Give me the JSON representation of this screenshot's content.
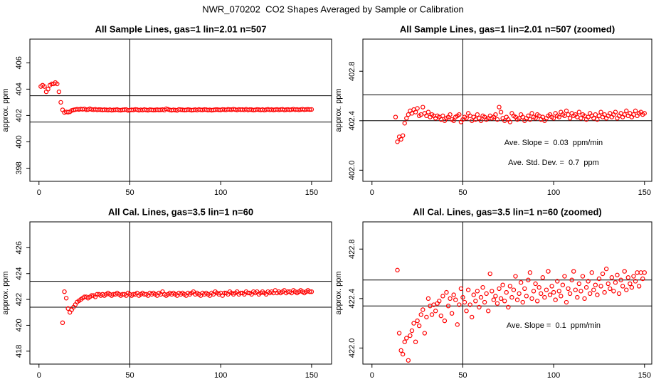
{
  "title": "NWR_070202  CO2 Shapes Averaged by Sample or Calibration",
  "chart_data": [
    {
      "type": "scatter",
      "title": "All Sample Lines, gas=1 lin=2.01 n=507",
      "ylabel": "approx. ppm",
      "color": "#ff0000",
      "xlim": [
        -5,
        161
      ],
      "ylim": [
        397,
        407.8
      ],
      "xticks": [
        0,
        50,
        100,
        150
      ],
      "yticks": [
        398,
        400,
        402,
        404,
        406
      ],
      "hlines": [
        403.5,
        401.5
      ],
      "vlines": [
        50
      ],
      "x": [
        1,
        2,
        3,
        4,
        5,
        6,
        7,
        8,
        9,
        10,
        11,
        12,
        13,
        14,
        15,
        16,
        17,
        18,
        19,
        20,
        21,
        22,
        23,
        24,
        25,
        26,
        27,
        28,
        29,
        30,
        31,
        32,
        33,
        34,
        35,
        36,
        37,
        38,
        39,
        40,
        41,
        42,
        43,
        44,
        45,
        46,
        47,
        48,
        49,
        50,
        51,
        52,
        53,
        54,
        55,
        56,
        57,
        58,
        59,
        60,
        61,
        62,
        63,
        64,
        65,
        66,
        67,
        68,
        69,
        70,
        71,
        72,
        73,
        74,
        75,
        76,
        77,
        78,
        79,
        80,
        81,
        82,
        83,
        84,
        85,
        86,
        87,
        88,
        89,
        90,
        91,
        92,
        93,
        94,
        95,
        96,
        97,
        98,
        99,
        100,
        101,
        102,
        103,
        104,
        105,
        106,
        107,
        108,
        109,
        110,
        111,
        112,
        113,
        114,
        115,
        116,
        117,
        118,
        119,
        120,
        121,
        122,
        123,
        124,
        125,
        126,
        127,
        128,
        129,
        130,
        131,
        132,
        133,
        134,
        135,
        136,
        137,
        138,
        139,
        140,
        141,
        142,
        143,
        144,
        145,
        146,
        147,
        148,
        149,
        150
      ],
      "values": [
        404.2,
        404.3,
        404.2,
        403.8,
        404.0,
        404.3,
        404.4,
        404.4,
        404.5,
        404.4,
        403.8,
        403.0,
        402.43,
        402.23,
        402.27,
        402.25,
        402.28,
        402.38,
        402.42,
        402.45,
        402.48,
        402.46,
        402.49,
        402.47,
        402.5,
        402.44,
        402.45,
        402.51,
        402.46,
        402.44,
        402.47,
        402.43,
        402.45,
        402.44,
        402.42,
        402.44,
        402.43,
        402.41,
        402.44,
        402.4,
        402.42,
        402.43,
        402.45,
        402.41,
        402.4,
        402.43,
        402.44,
        402.45,
        402.39,
        402.41,
        402.43,
        402.42,
        402.46,
        402.44,
        402.4,
        402.43,
        402.41,
        402.45,
        402.42,
        402.4,
        402.44,
        402.43,
        402.41,
        402.42,
        402.44,
        402.42,
        402.43,
        402.45,
        402.41,
        402.51,
        402.47,
        402.42,
        402.4,
        402.43,
        402.41,
        402.39,
        402.46,
        402.44,
        402.43,
        402.41,
        402.42,
        402.45,
        402.43,
        402.4,
        402.42,
        402.44,
        402.41,
        402.46,
        402.43,
        402.42,
        402.45,
        402.44,
        402.41,
        402.43,
        402.4,
        402.42,
        402.44,
        402.45,
        402.43,
        402.42,
        402.46,
        402.44,
        402.43,
        402.47,
        402.45,
        402.44,
        402.48,
        402.45,
        402.42,
        402.46,
        402.44,
        402.45,
        402.43,
        402.47,
        402.42,
        402.45,
        402.44,
        402.41,
        402.43,
        402.46,
        402.44,
        402.42,
        402.45,
        402.41,
        402.44,
        402.47,
        402.43,
        402.45,
        402.42,
        402.44,
        402.46,
        402.43,
        402.45,
        402.47,
        402.42,
        402.44,
        402.46,
        402.43,
        402.45,
        402.48,
        402.44,
        402.46,
        402.43,
        402.45,
        402.48,
        402.44,
        402.46,
        402.47,
        402.45,
        402.46
      ]
    },
    {
      "type": "scatter",
      "title": "All Sample Lines, gas=1 lin=2.01 n=507 (zoomed)",
      "ylabel": "approx. ppm",
      "color": "#ff0000",
      "xlim": [
        -5,
        154
      ],
      "ylim": [
        401.91,
        403.06
      ],
      "xticks": [
        0,
        50,
        100,
        150
      ],
      "yticks": [
        {
          "value": 402,
          "label": "402.0"
        },
        402.4,
        402.8
      ],
      "hlines": [
        402.61,
        402.4
      ],
      "vlines": [
        50
      ],
      "annotations": [
        "Ave. Slope =  0.03  ppm/min",
        "Ave. Std. Dev. =  0.7  ppm"
      ],
      "x": [
        13,
        14,
        15,
        16,
        17,
        18,
        19,
        20,
        21,
        22,
        23,
        24,
        25,
        26,
        27,
        28,
        29,
        30,
        31,
        32,
        33,
        34,
        35,
        36,
        37,
        38,
        39,
        40,
        41,
        42,
        43,
        44,
        45,
        46,
        47,
        48,
        49,
        50,
        51,
        52,
        53,
        54,
        55,
        56,
        57,
        58,
        59,
        60,
        61,
        62,
        63,
        64,
        65,
        66,
        67,
        68,
        69,
        70,
        71,
        72,
        73,
        74,
        75,
        76,
        77,
        78,
        79,
        80,
        81,
        82,
        83,
        84,
        85,
        86,
        87,
        88,
        89,
        90,
        91,
        92,
        93,
        94,
        95,
        96,
        97,
        98,
        99,
        100,
        101,
        102,
        103,
        104,
        105,
        106,
        107,
        108,
        109,
        110,
        111,
        112,
        113,
        114,
        115,
        116,
        117,
        118,
        119,
        120,
        121,
        122,
        123,
        124,
        125,
        126,
        127,
        128,
        129,
        130,
        131,
        132,
        133,
        134,
        135,
        136,
        137,
        138,
        139,
        140,
        141,
        142,
        143,
        144,
        145,
        146,
        147,
        148,
        149,
        150
      ],
      "values": [
        402.43,
        402.23,
        402.27,
        402.25,
        402.28,
        402.38,
        402.42,
        402.45,
        402.48,
        402.46,
        402.49,
        402.47,
        402.5,
        402.44,
        402.45,
        402.51,
        402.46,
        402.44,
        402.47,
        402.43,
        402.45,
        402.44,
        402.42,
        402.44,
        402.43,
        402.41,
        402.44,
        402.4,
        402.42,
        402.43,
        402.45,
        402.41,
        402.4,
        402.43,
        402.44,
        402.45,
        402.39,
        402.41,
        402.43,
        402.42,
        402.46,
        402.44,
        402.4,
        402.43,
        402.41,
        402.45,
        402.42,
        402.4,
        402.44,
        402.43,
        402.41,
        402.42,
        402.44,
        402.42,
        402.43,
        402.45,
        402.41,
        402.51,
        402.47,
        402.42,
        402.4,
        402.43,
        402.41,
        402.39,
        402.46,
        402.44,
        402.43,
        402.41,
        402.42,
        402.45,
        402.43,
        402.4,
        402.42,
        402.44,
        402.41,
        402.46,
        402.43,
        402.42,
        402.45,
        402.44,
        402.41,
        402.43,
        402.4,
        402.42,
        402.44,
        402.45,
        402.43,
        402.42,
        402.46,
        402.44,
        402.43,
        402.47,
        402.45,
        402.44,
        402.48,
        402.45,
        402.42,
        402.46,
        402.44,
        402.45,
        402.43,
        402.47,
        402.42,
        402.45,
        402.44,
        402.41,
        402.43,
        402.46,
        402.44,
        402.42,
        402.45,
        402.41,
        402.44,
        402.47,
        402.43,
        402.45,
        402.42,
        402.44,
        402.46,
        402.43,
        402.45,
        402.47,
        402.42,
        402.44,
        402.46,
        402.43,
        402.45,
        402.48,
        402.44,
        402.46,
        402.43,
        402.45,
        402.48,
        402.44,
        402.46,
        402.47,
        402.45,
        402.46
      ]
    },
    {
      "type": "scatter",
      "title": "All Cal. Lines, gas=3.5 lin=1 n=60",
      "ylabel": "approx. ppm",
      "color": "#ff0000",
      "xlim": [
        -5,
        161
      ],
      "ylim": [
        417,
        428
      ],
      "xticks": [
        0,
        50,
        100,
        150
      ],
      "yticks": [
        418,
        420,
        422,
        424,
        426
      ],
      "hlines": [
        423.4,
        421.4
      ],
      "vlines": [
        50
      ],
      "x": [
        13,
        14,
        15,
        16,
        17,
        18,
        19,
        20,
        21,
        22,
        23,
        24,
        25,
        26,
        27,
        28,
        29,
        30,
        31,
        32,
        33,
        34,
        35,
        36,
        37,
        38,
        39,
        40,
        41,
        42,
        43,
        44,
        45,
        46,
        47,
        48,
        49,
        50,
        51,
        52,
        53,
        54,
        55,
        56,
        57,
        58,
        59,
        60,
        61,
        62,
        63,
        64,
        65,
        66,
        67,
        68,
        69,
        70,
        71,
        72,
        73,
        74,
        75,
        76,
        77,
        78,
        79,
        80,
        81,
        82,
        83,
        84,
        85,
        86,
        87,
        88,
        89,
        90,
        91,
        92,
        93,
        94,
        95,
        96,
        97,
        98,
        99,
        100,
        101,
        102,
        103,
        104,
        105,
        106,
        107,
        108,
        109,
        110,
        111,
        112,
        113,
        114,
        115,
        116,
        117,
        118,
        119,
        120,
        121,
        122,
        123,
        124,
        125,
        126,
        127,
        128,
        129,
        130,
        131,
        132,
        133,
        134,
        135,
        136,
        137,
        138,
        139,
        140,
        141,
        142,
        143,
        144,
        145,
        146,
        147,
        148,
        149,
        150
      ],
      "values": [
        420.2,
        422.6,
        422.1,
        421.3,
        421.0,
        421.2,
        421.4,
        421.6,
        421.8,
        421.9,
        422.0,
        422.1,
        422.2,
        422.2,
        422.1,
        422.2,
        422.3,
        422.3,
        422.2,
        422.4,
        422.4,
        422.3,
        422.4,
        422.3,
        422.4,
        422.5,
        422.4,
        422.3,
        422.4,
        422.4,
        422.5,
        422.4,
        422.3,
        422.4,
        422.4,
        422.3,
        422.5,
        422.4,
        422.3,
        422.4,
        422.4,
        422.5,
        422.3,
        422.4,
        422.5,
        422.4,
        422.4,
        422.3,
        422.5,
        422.4,
        422.5,
        422.4,
        422.3,
        422.5,
        422.4,
        422.6,
        422.4,
        422.3,
        422.4,
        422.5,
        422.4,
        422.5,
        422.4,
        422.3,
        422.5,
        422.4,
        422.5,
        422.4,
        422.3,
        422.5,
        422.4,
        422.5,
        422.6,
        422.4,
        422.5,
        422.4,
        422.3,
        422.5,
        422.4,
        422.5,
        422.4,
        422.3,
        422.5,
        422.4,
        422.6,
        422.5,
        422.4,
        422.5,
        422.3,
        422.5,
        422.5,
        422.4,
        422.6,
        422.5,
        422.4,
        422.5,
        422.6,
        422.4,
        422.5,
        422.5,
        422.4,
        422.6,
        422.5,
        422.5,
        422.4,
        422.6,
        422.5,
        422.6,
        422.4,
        422.5,
        422.6,
        422.5,
        422.4,
        422.6,
        422.5,
        422.6,
        422.5,
        422.7,
        422.5,
        422.6,
        422.5,
        422.6,
        422.7,
        422.5,
        422.6,
        422.6,
        422.5,
        422.7,
        422.6,
        422.5,
        422.6,
        422.7,
        422.6,
        422.5,
        422.6,
        422.7,
        422.6,
        422.6
      ]
    },
    {
      "type": "scatter",
      "title": "All Cal. Lines, gas=3.5 lin=1 n=60 (zoomed)",
      "ylabel": "approx. ppm",
      "color": "#ff0000",
      "xlim": [
        -5,
        154
      ],
      "ylim": [
        421.87,
        423.02
      ],
      "xticks": [
        0,
        50,
        100,
        150
      ],
      "yticks": [
        {
          "value": 422,
          "label": "422.0"
        },
        422.4,
        422.8
      ],
      "hlines": [
        422.55,
        422.34
      ],
      "vlines": [
        50
      ],
      "annotations": [
        "Ave. Slope =  0.1  ppm/min"
      ],
      "x": [
        14,
        15,
        16,
        17,
        18,
        19,
        20,
        21,
        22,
        23,
        24,
        25,
        26,
        27,
        28,
        29,
        30,
        31,
        32,
        33,
        34,
        35,
        36,
        37,
        38,
        39,
        40,
        41,
        42,
        43,
        44,
        45,
        46,
        47,
        48,
        49,
        50,
        51,
        52,
        53,
        54,
        55,
        56,
        57,
        58,
        59,
        60,
        61,
        62,
        63,
        64,
        65,
        66,
        67,
        68,
        69,
        70,
        71,
        72,
        73,
        74,
        75,
        76,
        77,
        78,
        79,
        80,
        81,
        82,
        83,
        84,
        85,
        86,
        87,
        88,
        89,
        90,
        91,
        92,
        93,
        94,
        95,
        96,
        97,
        98,
        99,
        100,
        101,
        102,
        103,
        104,
        105,
        106,
        107,
        108,
        109,
        110,
        111,
        112,
        113,
        114,
        115,
        116,
        117,
        118,
        119,
        120,
        121,
        122,
        123,
        124,
        125,
        126,
        127,
        128,
        129,
        130,
        131,
        132,
        133,
        134,
        135,
        136,
        137,
        138,
        139,
        140,
        141,
        142,
        143,
        144,
        145,
        146,
        147,
        148,
        149,
        150
      ],
      "values": [
        422.63,
        422.12,
        421.98,
        421.95,
        422.05,
        422.08,
        421.9,
        422.1,
        422.14,
        422.2,
        422.05,
        422.22,
        422.18,
        422.27,
        422.31,
        422.12,
        422.25,
        422.4,
        422.34,
        422.27,
        422.35,
        422.3,
        422.36,
        422.38,
        422.26,
        422.42,
        422.22,
        422.45,
        422.34,
        422.4,
        422.28,
        422.43,
        422.39,
        422.19,
        422.35,
        422.48,
        422.41,
        422.37,
        422.3,
        422.47,
        422.35,
        422.25,
        422.43,
        422.38,
        422.46,
        422.33,
        422.41,
        422.49,
        422.37,
        422.44,
        422.3,
        422.6,
        422.46,
        422.39,
        422.42,
        422.36,
        422.48,
        422.4,
        422.51,
        422.38,
        422.45,
        422.33,
        422.5,
        422.41,
        422.47,
        422.58,
        422.39,
        422.44,
        422.53,
        422.37,
        422.48,
        422.42,
        422.55,
        422.61,
        422.4,
        422.46,
        422.52,
        422.38,
        422.49,
        422.44,
        422.57,
        422.41,
        422.47,
        422.62,
        422.43,
        422.5,
        422.45,
        422.39,
        422.54,
        422.46,
        422.42,
        422.51,
        422.58,
        422.37,
        422.48,
        422.44,
        422.55,
        422.62,
        422.47,
        422.41,
        422.52,
        422.46,
        422.58,
        422.4,
        422.49,
        422.54,
        422.44,
        422.61,
        422.47,
        422.51,
        422.43,
        422.56,
        422.5,
        422.6,
        422.45,
        422.64,
        422.52,
        422.48,
        422.57,
        422.46,
        422.53,
        422.59,
        422.44,
        422.55,
        422.5,
        422.62,
        422.47,
        422.57,
        422.52,
        422.49,
        422.58,
        422.54,
        422.61,
        422.5,
        422.61,
        422.56,
        422.61
      ]
    }
  ]
}
